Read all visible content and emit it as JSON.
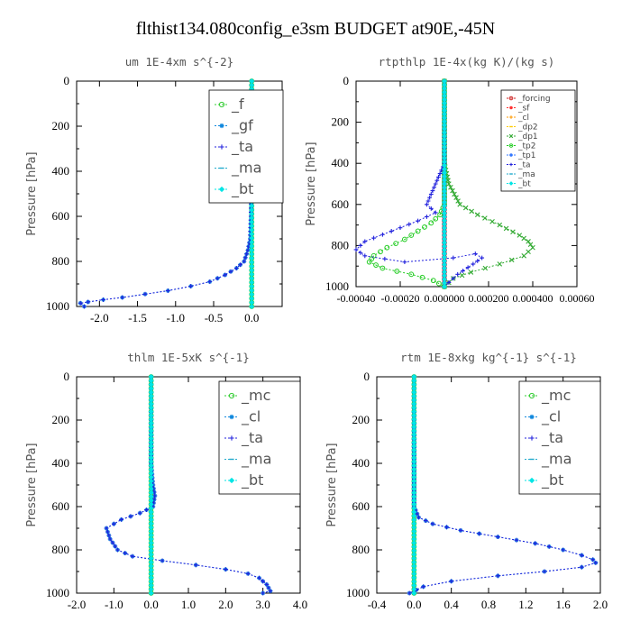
{
  "suptitle": "flthist134.080config_e3sm  BUDGET at90E,-45N",
  "colors": {
    "f": "#33cc33",
    "gf": "#1188dd",
    "ta": "#2222dd",
    "ma": "#22aacc",
    "bt": "#00e5e5",
    "forcing": "#cc2222",
    "sf": "#ff3333",
    "cl": "#ff9900",
    "dp2": "#ffcc00",
    "dp1": "#33aa33",
    "tp2": "#22cc22",
    "tp1": "#3377ff",
    "mc": "#33cc33"
  },
  "chart_data": [
    {
      "type": "line",
      "title": "um  1E-4xm s^{-2}",
      "ylabel": "Pressure [hPa]",
      "xlim": [
        -2.3,
        0.4
      ],
      "ylim": [
        1000,
        0
      ],
      "xticks": [
        "-2.0",
        "-1.5",
        "-1.0",
        "-0.5",
        "0.0"
      ],
      "xtick_values": [
        -2.0,
        -1.5,
        -1.0,
        -0.5,
        0.0
      ],
      "yticks": [
        "0",
        "200",
        "400",
        "600",
        "800",
        "1000"
      ],
      "ytick_values": [
        0,
        200,
        400,
        600,
        800,
        1000
      ],
      "legend": "top-right",
      "legend_size": "large",
      "series": [
        {
          "name": "_f",
          "color": "f",
          "x": [
            0.0,
            0.0
          ],
          "y": [
            0,
            1000
          ],
          "marker": "o"
        },
        {
          "name": "_gf",
          "color": "gf",
          "x": [
            0.0,
            0.0,
            0.0,
            -0.01,
            -0.02,
            -0.05,
            -0.1,
            -0.2,
            -0.35,
            -0.55,
            -0.8,
            -1.1,
            -1.4,
            -1.7,
            -1.95,
            -2.15,
            -2.25,
            -2.2
          ],
          "y": [
            0,
            200,
            400,
            600,
            700,
            750,
            800,
            830,
            860,
            890,
            910,
            930,
            945,
            960,
            970,
            980,
            985,
            1000
          ],
          "marker": "*"
        },
        {
          "name": "_ta",
          "color": "ta",
          "x": [
            0.0,
            0.0,
            0.0,
            -0.01,
            -0.02,
            -0.05,
            -0.1,
            -0.2,
            -0.35,
            -0.55,
            -0.8,
            -1.1,
            -1.4,
            -1.7,
            -1.95,
            -2.15,
            -2.25,
            -2.2
          ],
          "y": [
            0,
            200,
            400,
            600,
            700,
            750,
            800,
            830,
            860,
            890,
            910,
            930,
            945,
            960,
            970,
            980,
            985,
            1000
          ],
          "marker": "+"
        },
        {
          "name": "_ma",
          "color": "ma",
          "x": [
            0.0,
            0.0
          ],
          "y": [
            0,
            1000
          ],
          "marker": "-"
        },
        {
          "name": "_bt",
          "color": "bt",
          "x": [
            0.0,
            0.0
          ],
          "y": [
            0,
            1000
          ],
          "marker": "d"
        }
      ]
    },
    {
      "type": "line",
      "title": "rtpthlp  1E-4x(kg K)/(kg s)",
      "ylabel": "Pressure [hPa]",
      "xlim": [
        -0.0004,
        0.0006
      ],
      "ylim": [
        1000,
        0
      ],
      "xticks": [
        "-0.00040",
        "-0.00020",
        "0.000000",
        "0.000200",
        "0.000400",
        "0.00060"
      ],
      "xtick_values": [
        -0.0004,
        -0.0002,
        0.0,
        0.0002,
        0.0004,
        0.0006
      ],
      "yticks": [
        "0",
        "200",
        "400",
        "600",
        "800",
        "1000"
      ],
      "ytick_values": [
        0,
        200,
        400,
        600,
        800,
        1000
      ],
      "legend": "top-right",
      "legend_size": "small",
      "series": [
        {
          "name": "_forcing",
          "color": "forcing",
          "x": [
            0.0,
            0.0
          ],
          "y": [
            0,
            1000
          ],
          "marker": "o"
        },
        {
          "name": "_sf",
          "color": "sf",
          "x": [
            0.0,
            0.0
          ],
          "y": [
            0,
            1000
          ],
          "marker": "*"
        },
        {
          "name": "_cl",
          "color": "cl",
          "x": [
            0.0,
            0.0
          ],
          "y": [
            0,
            1000
          ],
          "marker": "+"
        },
        {
          "name": "_dp2",
          "color": "dp2",
          "x": [
            0.0,
            0.0
          ],
          "y": [
            0,
            1000
          ],
          "marker": "-"
        },
        {
          "name": "_dp1",
          "color": "dp1",
          "x": [
            0.0,
            0.0,
            2e-05,
            7e-05,
            0.00015,
            0.00025,
            0.00034,
            0.00038,
            0.0004,
            0.00036,
            0.00025,
            0.00012,
            4e-05,
            0.0
          ],
          "y": [
            0,
            400,
            500,
            600,
            650,
            700,
            750,
            780,
            810,
            850,
            890,
            930,
            960,
            1000
          ],
          "marker": "x"
        },
        {
          "name": "_tp2",
          "color": "tp2",
          "x": [
            0.0,
            0.0,
            -2e-05,
            -6e-05,
            -0.00012,
            -0.00018,
            -0.00026,
            -0.00032,
            -0.00034,
            -0.00028,
            -0.00015,
            -5e-05,
            0.0
          ],
          "y": [
            0,
            600,
            650,
            690,
            730,
            770,
            810,
            850,
            880,
            910,
            940,
            970,
            1000
          ],
          "marker": "o"
        },
        {
          "name": "_tp1",
          "color": "tp1",
          "x": [
            0.0,
            0.0
          ],
          "y": [
            0,
            1000
          ],
          "marker": "*"
        },
        {
          "name": "_ta",
          "color": "ta",
          "x": [
            0.0,
            0.0,
            -4e-05,
            -8e-05,
            -4e-05,
            -0.00012,
            -0.00024,
            -0.00036,
            -0.0004,
            -0.00036,
            -0.00018,
            4e-05,
            0.00014,
            0.00017,
            0.00013,
            6e-05,
            0.0
          ],
          "y": [
            0,
            400,
            500,
            600,
            640,
            680,
            730,
            780,
            820,
            850,
            880,
            860,
            840,
            860,
            890,
            940,
            1000
          ],
          "marker": "+"
        },
        {
          "name": "_ma",
          "color": "ma",
          "x": [
            0.0,
            0.0
          ],
          "y": [
            0,
            1000
          ],
          "marker": "-"
        },
        {
          "name": "_bt",
          "color": "bt",
          "x": [
            0.0,
            0.0
          ],
          "y": [
            0,
            1000
          ],
          "marker": "d"
        }
      ]
    },
    {
      "type": "line",
      "title": "thlm  1E-5xK s^{-1}",
      "ylabel": "Pressure [hPa]",
      "xlim": [
        -2.0,
        4.0
      ],
      "ylim": [
        1000,
        0
      ],
      "xticks": [
        "-2.0",
        "-1.0",
        "0.0",
        "1.0",
        "2.0",
        "3.0",
        "4.0"
      ],
      "xtick_values": [
        -2.0,
        -1.0,
        0.0,
        1.0,
        2.0,
        3.0,
        4.0
      ],
      "yticks": [
        "0",
        "200",
        "400",
        "600",
        "800",
        "1000"
      ],
      "ytick_values": [
        0,
        200,
        400,
        600,
        800,
        1000
      ],
      "legend": "top-right",
      "legend_size": "large",
      "series": [
        {
          "name": "_mc",
          "color": "mc",
          "x": [
            0.0,
            0.0
          ],
          "y": [
            0,
            1000
          ],
          "marker": "o"
        },
        {
          "name": "_cl",
          "color": "gf",
          "x": [
            0.0,
            0.0,
            0.05,
            0.1,
            0.05,
            -0.3,
            -0.8,
            -1.2,
            -1.1,
            -0.9,
            -0.5,
            0.3,
            1.2,
            2.0,
            2.6,
            2.9,
            3.1,
            3.2,
            3.0
          ],
          "y": [
            0,
            400,
            500,
            550,
            600,
            630,
            660,
            700,
            750,
            800,
            830,
            850,
            870,
            890,
            910,
            930,
            960,
            990,
            1000
          ],
          "marker": "*"
        },
        {
          "name": "_ta",
          "color": "ta",
          "x": [
            0.0,
            0.0,
            0.05,
            0.1,
            0.05,
            -0.3,
            -0.8,
            -1.2,
            -1.1,
            -0.9,
            -0.5,
            0.3,
            1.2,
            2.0,
            2.6,
            2.9,
            3.1,
            3.2,
            3.0
          ],
          "y": [
            0,
            400,
            500,
            550,
            600,
            630,
            660,
            700,
            750,
            800,
            830,
            850,
            870,
            890,
            910,
            930,
            960,
            990,
            1000
          ],
          "marker": "+"
        },
        {
          "name": "_ma",
          "color": "ma",
          "x": [
            0.0,
            0.0
          ],
          "y": [
            0,
            1000
          ],
          "marker": "-"
        },
        {
          "name": "_bt",
          "color": "bt",
          "x": [
            0.0,
            0.0
          ],
          "y": [
            0,
            1000
          ],
          "marker": "d"
        }
      ]
    },
    {
      "type": "line",
      "title": "rtm  1E-8xkg kg^{-1} s^{-1}",
      "ylabel": "Pressure [hPa]",
      "xlim": [
        -0.4,
        2.0
      ],
      "ylim": [
        1000,
        0
      ],
      "xticks": [
        "-0.4",
        "0.0",
        "0.4",
        "0.8",
        "1.2",
        "1.6",
        "2.0"
      ],
      "xtick_values": [
        -0.4,
        0.0,
        0.4,
        0.8,
        1.2,
        1.6,
        2.0
      ],
      "yticks": [
        "0",
        "200",
        "400",
        "600",
        "800",
        "1000"
      ],
      "ytick_values": [
        0,
        200,
        400,
        600,
        800,
        1000
      ],
      "legend": "top-right",
      "legend_size": "large",
      "series": [
        {
          "name": "_mc",
          "color": "mc",
          "x": [
            0.0,
            0.0
          ],
          "y": [
            0,
            1000
          ],
          "marker": "o"
        },
        {
          "name": "_cl",
          "color": "gf",
          "x": [
            0.0,
            0.0,
            0.0,
            0.05,
            0.2,
            0.5,
            0.9,
            1.3,
            1.6,
            1.8,
            1.92,
            1.95,
            1.8,
            1.4,
            0.9,
            0.4,
            0.1,
            -0.05
          ],
          "y": [
            0,
            400,
            600,
            650,
            680,
            710,
            740,
            770,
            800,
            825,
            845,
            860,
            880,
            900,
            920,
            945,
            970,
            1000
          ],
          "marker": "*"
        },
        {
          "name": "_ta",
          "color": "ta",
          "x": [
            0.0,
            0.0,
            0.0,
            0.05,
            0.2,
            0.5,
            0.9,
            1.3,
            1.6,
            1.8,
            1.92,
            1.95,
            1.8,
            1.4,
            0.9,
            0.4,
            0.1,
            -0.05
          ],
          "y": [
            0,
            400,
            600,
            650,
            680,
            710,
            740,
            770,
            800,
            825,
            845,
            860,
            880,
            900,
            920,
            945,
            970,
            1000
          ],
          "marker": "+"
        },
        {
          "name": "_ma",
          "color": "ma",
          "x": [
            0.0,
            0.0
          ],
          "y": [
            0,
            1000
          ],
          "marker": "-"
        },
        {
          "name": "_bt",
          "color": "bt",
          "x": [
            0.0,
            0.0
          ],
          "y": [
            0,
            1000
          ],
          "marker": "d"
        }
      ]
    }
  ]
}
